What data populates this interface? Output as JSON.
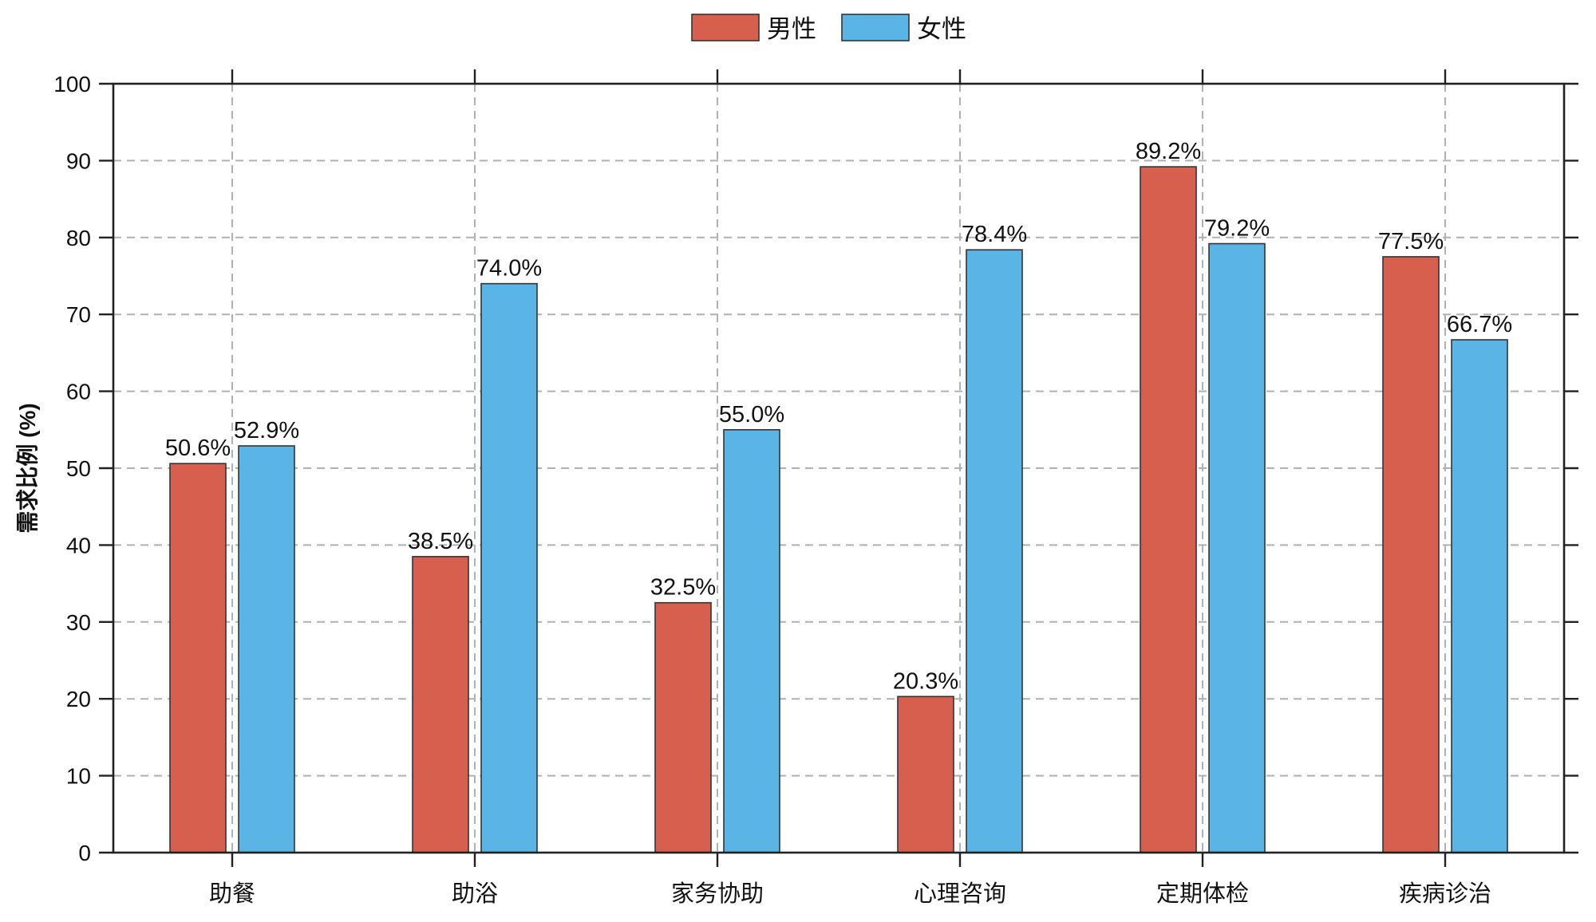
{
  "chart_data": {
    "type": "bar",
    "title": "",
    "xlabel": "",
    "ylabel": "需求比例 (%)",
    "categories": [
      "助餐",
      "助浴",
      "家务协助",
      "心理咨询",
      "定期体检",
      "疾病诊治"
    ],
    "series": [
      {
        "name": "男性",
        "color": "#D6604D",
        "values": [
          50.6,
          38.5,
          32.5,
          20.3,
          89.2,
          77.5
        ],
        "labels": [
          "50.6%",
          "38.5%",
          "32.5%",
          "20.3%",
          "89.2%",
          "77.5%"
        ]
      },
      {
        "name": "女性",
        "color": "#5AB4E5",
        "values": [
          52.9,
          74.0,
          55.0,
          78.4,
          79.2,
          66.7
        ],
        "labels": [
          "52.9%",
          "74.0%",
          "55.0%",
          "78.4%",
          "79.2%",
          "66.7%"
        ]
      }
    ],
    "ylim": [
      0,
      100
    ],
    "yticks": [
      0,
      10,
      20,
      30,
      40,
      50,
      60,
      70,
      80,
      90,
      100
    ],
    "grid": true,
    "grid_color": "#B0B0B0",
    "legend": "top-center",
    "bar_edge_color": "#333333",
    "axis_color": "#222222"
  }
}
